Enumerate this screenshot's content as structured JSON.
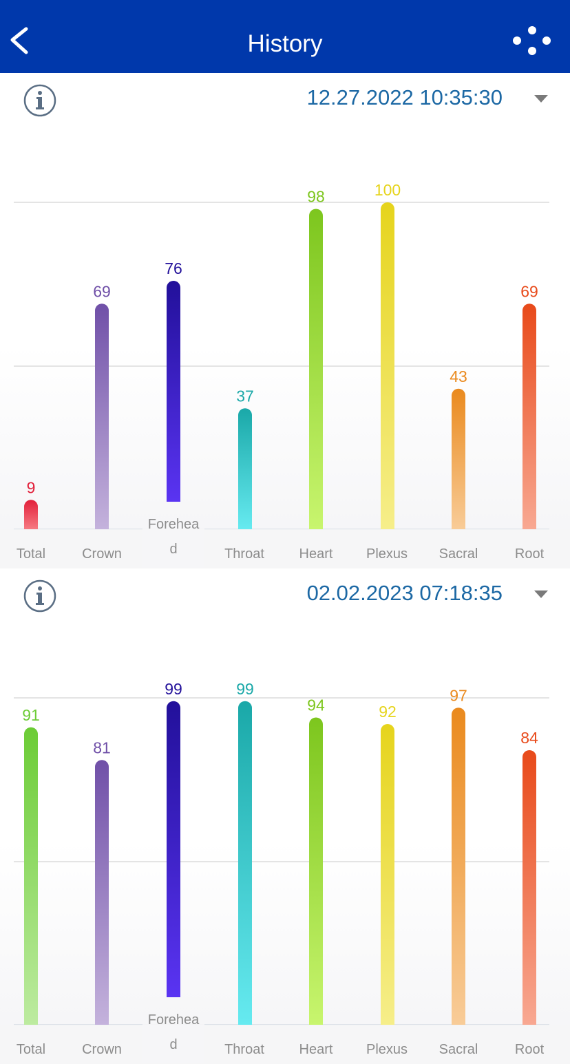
{
  "app_bar": {
    "title": "History",
    "background": "#0038ab",
    "back_icon": "chevron-left-icon",
    "share_icon": "share-nodes-icon"
  },
  "panels": [
    {
      "date": "12.27.2022 10:35:30",
      "info_icon": "info-icon",
      "dropdown_icon": "caret-down-icon"
    },
    {
      "date": "02.02.2023 07:18:35",
      "info_icon": "info-icon",
      "dropdown_icon": "caret-down-icon"
    }
  ],
  "forehead_label_parts": [
    "Forehea",
    "d"
  ],
  "chart_data": [
    {
      "type": "bar",
      "categories": [
        "Total",
        "Crown",
        "Forehead",
        "Throat",
        "Heart",
        "Plexus",
        "Sacral",
        "Root"
      ],
      "values": [
        9,
        69,
        76,
        37,
        98,
        100,
        43,
        69
      ],
      "ylim": [
        0,
        100
      ],
      "grid": true,
      "colors": [
        "#e2203a",
        "#7050a8",
        "#22109a",
        "#1aa8a8",
        "#7dc61e",
        "#e6d41c",
        "#ea8a1e",
        "#e84a1a"
      ]
    },
    {
      "type": "bar",
      "categories": [
        "Total",
        "Crown",
        "Forehead",
        "Throat",
        "Heart",
        "Plexus",
        "Sacral",
        "Root"
      ],
      "values": [
        91,
        81,
        99,
        99,
        94,
        92,
        97,
        84
      ],
      "ylim": [
        0,
        100
      ],
      "grid": true,
      "colors": [
        "#6ccc36",
        "#7050a8",
        "#22109a",
        "#1aa8a8",
        "#7dc61e",
        "#e6d41c",
        "#ea8a1e",
        "#e84a1a"
      ]
    }
  ],
  "bar_light_colors": {
    "Total": [
      "#f67a82",
      "#bdeba0"
    ],
    "Crown": "#c4b2dc",
    "Forehead": "#5a34f2",
    "Throat": "#66eaf0",
    "Heart": "#c8f56e",
    "Plexus": "#f6ee8a",
    "Sacral": "#f8cc98",
    "Root": "#f8a892"
  }
}
